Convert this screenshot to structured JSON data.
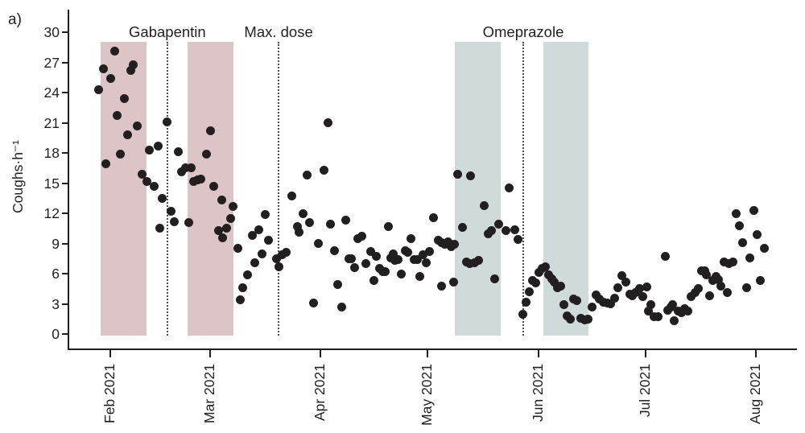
{
  "figure": {
    "panel_label": "a)"
  },
  "chart_data": {
    "type": "scatter",
    "title": "",
    "panel_label": "a)",
    "xlabel": "",
    "ylabel": "Coughs·h⁻¹",
    "ylim": [
      0,
      30
    ],
    "y_ticks": [
      0,
      3,
      6,
      9,
      12,
      15,
      18,
      21,
      24,
      27,
      30
    ],
    "grid": false,
    "x_unit": "days since 2021-02-01",
    "x_ticks": [
      {
        "label": "Feb 2021",
        "day": 0
      },
      {
        "label": "Mar 2021",
        "day": 28
      },
      {
        "label": "Apr 2021",
        "day": 59
      },
      {
        "label": "May 2021",
        "day": 89
      },
      {
        "label": "Jun 2021",
        "day": 120
      },
      {
        "label": "Jul 2021",
        "day": 150
      },
      {
        "label": "Aug 2021",
        "day": 181
      }
    ],
    "annotations": [
      {
        "label": "Gabapentin",
        "day": 16.0
      },
      {
        "label": "Max. dose",
        "day": 47.2
      },
      {
        "label": "Omeprazole",
        "day": 115.8
      }
    ],
    "dashed_lines_days": [
      16.0,
      47.2,
      115.8
    ],
    "bands": [
      {
        "from_day": -2.7,
        "to_day": 10.2,
        "color": "#ddc5c7"
      },
      {
        "from_day": 21.7,
        "to_day": 34.5,
        "color": "#ddc5c7"
      },
      {
        "from_day": 96.6,
        "to_day": 109.5,
        "color": "#cfdbdb"
      },
      {
        "from_day": 121.4,
        "to_day": 134.1,
        "color": "#cfdbdb"
      }
    ],
    "point_color": "#231f20",
    "axis_color": "#231f20",
    "points": [
      [
        -3.2,
        24.3
      ],
      [
        -2.0,
        26.4
      ],
      [
        -1.2,
        16.9
      ],
      [
        0.2,
        25.4
      ],
      [
        1.3,
        28.1
      ],
      [
        2.0,
        21.7
      ],
      [
        2.9,
        17.9
      ],
      [
        4.0,
        23.4
      ],
      [
        4.9,
        19.8
      ],
      [
        5.8,
        26.2
      ],
      [
        6.4,
        26.8
      ],
      [
        7.6,
        20.7
      ],
      [
        8.9,
        15.9
      ],
      [
        10.2,
        15.2
      ],
      [
        11.0,
        18.3
      ],
      [
        12.2,
        14.7
      ],
      [
        13.5,
        18.7
      ],
      [
        13.8,
        10.5
      ],
      [
        14.6,
        13.5
      ],
      [
        15.9,
        21.1
      ],
      [
        17.0,
        12.2
      ],
      [
        18.0,
        11.2
      ],
      [
        19.0,
        18.1
      ],
      [
        20.0,
        16.1
      ],
      [
        21.0,
        16.5
      ],
      [
        21.9,
        11.1
      ],
      [
        22.7,
        16.5
      ],
      [
        23.3,
        15.2
      ],
      [
        24.4,
        15.3
      ],
      [
        25.5,
        15.4
      ],
      [
        27.0,
        17.9
      ],
      [
        28.0,
        20.2
      ],
      [
        29.1,
        14.7
      ],
      [
        30.3,
        10.3
      ],
      [
        31.2,
        13.3
      ],
      [
        31.6,
        9.6
      ],
      [
        32.6,
        10.5
      ],
      [
        33.8,
        11.5
      ],
      [
        34.4,
        12.7
      ],
      [
        35.7,
        8.5
      ],
      [
        36.4,
        3.4
      ],
      [
        37.2,
        4.6
      ],
      [
        38.5,
        5.9
      ],
      [
        39.8,
        9.8
      ],
      [
        40.6,
        7.1
      ],
      [
        41.6,
        10.4
      ],
      [
        42.5,
        8.0
      ],
      [
        43.4,
        11.9
      ],
      [
        44.3,
        9.3
      ],
      [
        46.6,
        7.5
      ],
      [
        47.3,
        6.7
      ],
      [
        48.3,
        7.9
      ],
      [
        49.3,
        8.1
      ],
      [
        51.0,
        13.7
      ],
      [
        52.4,
        10.7
      ],
      [
        53.0,
        10.1
      ],
      [
        54.0,
        12.0
      ],
      [
        55.1,
        15.8
      ],
      [
        55.9,
        11.1
      ],
      [
        57.0,
        3.1
      ],
      [
        58.4,
        9.0
      ],
      [
        60.0,
        16.3
      ],
      [
        61.0,
        21.0
      ],
      [
        61.7,
        10.9
      ],
      [
        62.8,
        8.3
      ],
      [
        63.7,
        4.9
      ],
      [
        64.8,
        2.7
      ],
      [
        66.1,
        11.3
      ],
      [
        67.0,
        7.5
      ],
      [
        67.7,
        7.5
      ],
      [
        68.6,
        6.6
      ],
      [
        69.4,
        9.5
      ],
      [
        70.6,
        9.7
      ],
      [
        71.7,
        7.0
      ],
      [
        73.0,
        8.2
      ],
      [
        73.9,
        5.3
      ],
      [
        74.6,
        7.7
      ],
      [
        75.5,
        6.5
      ],
      [
        76.3,
        6.2
      ],
      [
        77.0,
        6.2
      ],
      [
        78.0,
        10.7
      ],
      [
        78.6,
        7.6
      ],
      [
        79.3,
        8.0
      ],
      [
        79.9,
        7.3
      ],
      [
        80.7,
        7.4
      ],
      [
        81.7,
        6.0
      ],
      [
        82.7,
        8.3
      ],
      [
        83.4,
        8.1
      ],
      [
        84.4,
        9.5
      ],
      [
        85.3,
        7.4
      ],
      [
        86.2,
        7.4
      ],
      [
        86.9,
        5.7
      ],
      [
        87.6,
        7.9
      ],
      [
        88.6,
        7.1
      ],
      [
        89.5,
        8.2
      ],
      [
        90.7,
        11.6
      ],
      [
        91.9,
        9.3
      ],
      [
        92.9,
        4.8
      ],
      [
        93.0,
        9.1
      ],
      [
        93.9,
        8.9
      ],
      [
        94.8,
        9.2
      ],
      [
        95.7,
        8.7
      ],
      [
        96.3,
        5.2
      ],
      [
        96.6,
        8.9
      ],
      [
        97.5,
        15.9
      ],
      [
        98.7,
        10.6
      ],
      [
        99.9,
        7.2
      ],
      [
        100.8,
        7.0
      ],
      [
        101.1,
        15.7
      ],
      [
        102.2,
        7.1
      ],
      [
        103.2,
        7.3
      ],
      [
        104.9,
        12.8
      ],
      [
        106.0,
        10.0
      ],
      [
        106.9,
        10.3
      ],
      [
        107.8,
        5.5
      ],
      [
        108.9,
        10.9
      ],
      [
        110.9,
        10.3
      ],
      [
        111.9,
        14.5
      ],
      [
        113.4,
        10.4
      ],
      [
        114.3,
        9.4
      ],
      [
        115.8,
        2.0
      ],
      [
        116.7,
        3.2
      ],
      [
        117.5,
        4.2
      ],
      [
        118.4,
        5.3
      ],
      [
        119.2,
        5.1
      ],
      [
        120.2,
        6.1
      ],
      [
        121.2,
        6.5
      ],
      [
        122.1,
        6.7
      ],
      [
        123.0,
        5.9
      ],
      [
        123.8,
        5.5
      ],
      [
        124.5,
        5.2
      ],
      [
        125.4,
        4.6
      ],
      [
        126.2,
        4.8
      ],
      [
        127.2,
        2.9
      ],
      [
        128.1,
        1.8
      ],
      [
        129.0,
        1.5
      ],
      [
        129.9,
        3.5
      ],
      [
        130.8,
        3.3
      ],
      [
        131.9,
        1.6
      ],
      [
        133.0,
        1.4
      ],
      [
        133.9,
        1.5
      ],
      [
        135.0,
        2.7
      ],
      [
        136.3,
        3.9
      ],
      [
        137.2,
        3.5
      ],
      [
        138.3,
        3.2
      ],
      [
        139.4,
        3.1
      ],
      [
        140.3,
        3.0
      ],
      [
        141.5,
        3.6
      ],
      [
        142.4,
        4.6
      ],
      [
        143.5,
        5.8
      ],
      [
        144.6,
        5.2
      ],
      [
        145.6,
        4.0
      ],
      [
        146.5,
        3.8
      ],
      [
        147.4,
        4.1
      ],
      [
        148.5,
        4.5
      ],
      [
        149.4,
        3.7
      ],
      [
        150.4,
        4.7
      ],
      [
        150.9,
        2.3
      ],
      [
        151.5,
        2.9
      ],
      [
        152.4,
        1.7
      ],
      [
        153.5,
        1.7
      ],
      [
        155.6,
        7.7
      ],
      [
        156.4,
        2.4
      ],
      [
        157.3,
        2.7
      ],
      [
        157.7,
        2.9
      ],
      [
        158.2,
        1.3
      ],
      [
        159.2,
        2.3
      ],
      [
        160.1,
        2.1
      ],
      [
        161.0,
        2.5
      ],
      [
        162.0,
        2.3
      ],
      [
        162.9,
        3.7
      ],
      [
        163.9,
        4.1
      ],
      [
        164.9,
        4.5
      ],
      [
        165.8,
        6.3
      ],
      [
        166.7,
        6.3
      ],
      [
        167.1,
        5.9
      ],
      [
        168.0,
        3.8
      ],
      [
        168.9,
        5.3
      ],
      [
        169.9,
        5.7
      ],
      [
        170.6,
        5.4
      ],
      [
        171.2,
        4.8
      ],
      [
        172.1,
        7.2
      ],
      [
        173.1,
        4.1
      ],
      [
        173.4,
        7.0
      ],
      [
        174.6,
        7.2
      ],
      [
        175.5,
        12.0
      ],
      [
        176.5,
        10.8
      ],
      [
        177.4,
        9.1
      ],
      [
        178.4,
        4.6
      ],
      [
        179.3,
        7.6
      ],
      [
        180.4,
        12.3
      ],
      [
        181.4,
        9.9
      ],
      [
        182.3,
        5.3
      ],
      [
        183.3,
        8.5
      ]
    ]
  }
}
